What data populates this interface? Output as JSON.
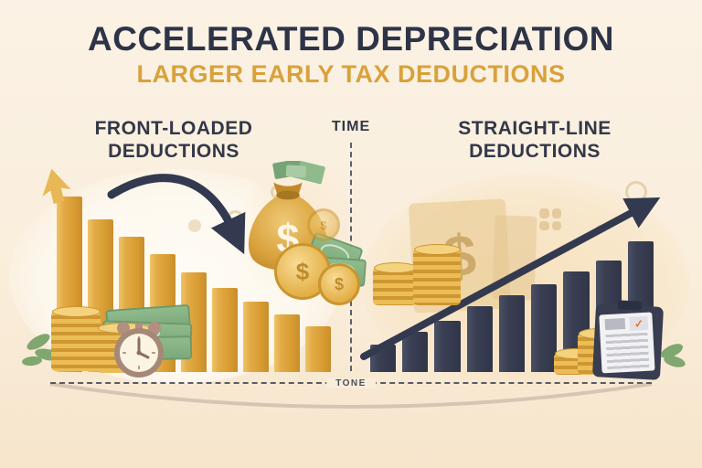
{
  "page": {
    "title": "ACCELERATED DEPRECIATION",
    "subtitle": "LARGER EARLY TAX DEDUCTIONS"
  },
  "panels": {
    "left": {
      "heading_line1": "FRONT-LOADED",
      "heading_line2": "DEDUCTIONS"
    },
    "right": {
      "heading_line1": "STRAIGHT-LINE",
      "heading_line2": "DEDUCTIONS"
    }
  },
  "axis": {
    "time_label": "TIME",
    "bottom_label": "TONE"
  },
  "glyphs": {
    "dollar": "$",
    "check": "✓"
  },
  "colors": {
    "background": "#FBF1E3",
    "title_navy": "#2E3447",
    "accent_gold": "#D8A23B",
    "bar_gold": "#DFA23B",
    "bar_navy": "#363B4E",
    "arrow_navy": "#333A4F",
    "dashed_line": "#464A58",
    "ground_arc": "#CDBBAD"
  },
  "chart_data": [
    {
      "type": "bar",
      "title": "Front-Loaded Deductions",
      "bar_count": 9,
      "values": [
        100,
        87,
        77,
        67,
        57,
        48,
        40,
        33,
        26
      ],
      "unit": "relative deduction size (% of tallest bar)",
      "trend": "decreasing",
      "annotation": "curved navy arrow sweeping down toward a money bag",
      "bar_color": "#DFA23B",
      "xlabel": "TIME",
      "grid": false,
      "legend": "none"
    },
    {
      "type": "bar",
      "title": "Straight-Line Deductions",
      "bar_count": 9,
      "values": [
        21,
        31,
        39,
        50,
        59,
        67,
        77,
        85,
        100
      ],
      "unit": "relative deduction size (% of tallest bar)",
      "trend": "increasing",
      "annotation": "straight navy arrow rising to the upper right",
      "bar_color": "#363B4E",
      "xlabel": "TIME",
      "grid": false,
      "legend": "none"
    }
  ],
  "icons": {
    "money-bag": "gold sack with dollar sign and cash poking out",
    "dollar-coin": "gold coin with $",
    "cash-stack": "pile of green banknotes",
    "coin-stack": "cylinder stack of gold coins",
    "alarm-clock": "vintage analog alarm clock with twin bells",
    "leaf": "green leaf sprig",
    "curved-down-arrow": "navy swoosh arrow pointing down-right",
    "rising-arrow": "navy straight arrow pointing up-right",
    "up-arrow": "gold arrow tip atop tallest bar",
    "faded-document": "tan invoice with $ watermark",
    "clipboard": "navy clipboard holding a checked document"
  }
}
